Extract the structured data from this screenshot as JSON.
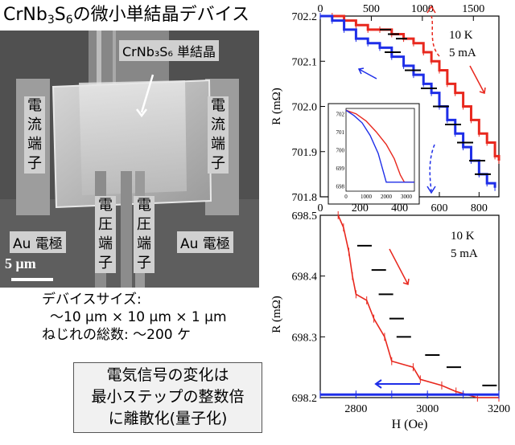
{
  "title": {
    "prefix": "CrNb",
    "sub1": "3",
    "mid": "S",
    "sub2": "6",
    "suffix": "の微小単結晶デバイス"
  },
  "sem_labels": {
    "crystal": "CrNb₃S₆ 単結晶",
    "current_left": [
      "電",
      "流",
      "端",
      "子"
    ],
    "current_right": [
      "電",
      "流",
      "端",
      "子"
    ],
    "voltage_left": [
      "電",
      "圧",
      "端",
      "子"
    ],
    "voltage_right": [
      "電",
      "圧",
      "端",
      "子"
    ],
    "electrode_left": "Au 電極",
    "electrode_right": "Au 電極",
    "scale_bar": "5 μm"
  },
  "specs": {
    "line1": "デバイスサイズ:",
    "line2": "～10 μm × 10 μm × 1 μm",
    "line3": "ねじれの総数: ～200 ケ"
  },
  "summary": {
    "line1": "電気信号の変化は",
    "line2": "最小ステップの整数倍",
    "line3": "に離散化(量子化)"
  },
  "colors": {
    "up_sweep": "#e8281e",
    "down_sweep": "#1e2ee8",
    "dashed_up": "#e8281e",
    "dashed_down": "#1e2ee8"
  },
  "chart_data": [
    {
      "type": "line",
      "annotation": [
        "10 K",
        "5 mA"
      ],
      "ylabel": "R (mΩ)",
      "xlim_bottom": [
        0,
        900
      ],
      "xlim_top": [
        0,
        1750
      ],
      "ylim": [
        701.8,
        702.2
      ],
      "x_ticks_bottom": [
        "0",
        "200",
        "400",
        "600",
        "800"
      ],
      "x_ticks_top": [
        "0",
        "500",
        "1000",
        "1500"
      ],
      "y_ticks": [
        "701.8",
        "701.9",
        "702.0",
        "702.1",
        "702.2"
      ],
      "series": [
        {
          "x": [
            0,
            60,
            120,
            180,
            240,
            300,
            360,
            420,
            470,
            520,
            560,
            600,
            640,
            680,
            720,
            760,
            800,
            840,
            880,
            900
          ],
          "y": [
            702.2,
            702.2,
            702.19,
            702.18,
            702.17,
            702.17,
            702.16,
            702.15,
            702.14,
            702.12,
            702.1,
            702.08,
            702.05,
            702.03,
            702.0,
            701.97,
            701.94,
            701.92,
            701.89,
            701.88
          ]
        },
        {
          "x": [
            0,
            60,
            120,
            180,
            240,
            300,
            360,
            420,
            470,
            520,
            560,
            600,
            640,
            680,
            720,
            760,
            800,
            840,
            880
          ],
          "y": [
            702.2,
            702.19,
            702.17,
            702.15,
            702.14,
            702.13,
            702.11,
            702.09,
            702.07,
            702.05,
            702.03,
            702.0,
            701.97,
            701.94,
            701.91,
            701.88,
            701.85,
            701.83,
            701.82
          ]
        }
      ],
      "inset": {
        "y_ticks": [
          "698",
          "699",
          "700",
          "701",
          "702"
        ],
        "x_ticks": [
          "0",
          "1000",
          "2000",
          "3000"
        ],
        "xlim": [
          0,
          3400
        ],
        "ylim": [
          697.7,
          702.3
        ],
        "series": [
          {
            "x": [
              0,
              500,
              1000,
              1500,
              2000,
              2400,
              2700,
              2900,
              3400
            ],
            "y": [
              702.2,
              702.0,
              701.6,
              701.0,
              700.3,
              699.5,
              698.6,
              698.2,
              698.2
            ]
          },
          {
            "x": [
              0,
              400,
              800,
              1200,
              1600,
              1850,
              1950,
              2000,
              3400
            ],
            "y": [
              702.2,
              701.9,
              701.5,
              700.8,
              699.8,
              698.8,
              698.4,
              698.2,
              698.2
            ]
          }
        ]
      }
    },
    {
      "type": "line",
      "annotation": [
        "10 K",
        "5 mA"
      ],
      "xlabel": "H (Oe)",
      "ylabel": "R (mΩ)",
      "xlim": [
        2700,
        3200
      ],
      "ylim": [
        698.2,
        698.5
      ],
      "x_ticks": [
        "2800",
        "3000",
        "3200"
      ],
      "y_ticks": [
        "698.2",
        "698.3",
        "698.4",
        "698.5"
      ],
      "series": [
        {
          "x": [
            2750,
            2765,
            2780,
            2790,
            2800,
            2830,
            2850,
            2880,
            2900,
            2960,
            2980,
            3040,
            3080,
            3140,
            3200
          ],
          "y": [
            698.5,
            698.48,
            698.44,
            698.4,
            698.37,
            698.36,
            698.33,
            698.3,
            698.26,
            698.25,
            698.23,
            698.22,
            698.21,
            698.2,
            698.2
          ]
        },
        {
          "x": [
            2700,
            2800,
            2900,
            3000,
            3100,
            3200
          ],
          "y": [
            698.205,
            698.205,
            698.205,
            698.205,
            698.205,
            698.205
          ]
        }
      ]
    }
  ]
}
